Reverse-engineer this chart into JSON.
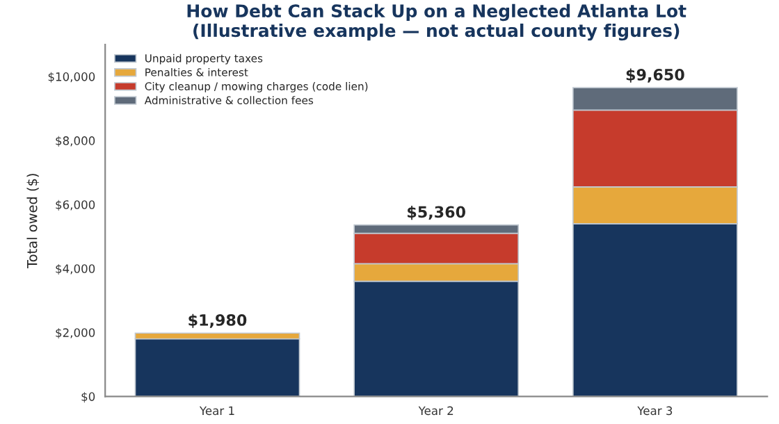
{
  "chart_data": {
    "type": "bar",
    "title": "How Debt Can Stack Up on a Neglected Atlanta Lot\n(Illustrative example — not actual county figures)",
    "ylabel": "Total owed ($)",
    "categories": [
      "Year 1",
      "Year 2",
      "Year 3"
    ],
    "stacked": true,
    "series": [
      {
        "name": "Unpaid property taxes",
        "color": "#17355d",
        "values": [
          1800,
          3600,
          5400
        ]
      },
      {
        "name": "Penalties & interest",
        "color": "#e6a83c",
        "values": [
          180,
          550,
          1150
        ]
      },
      {
        "name": "City cleanup / mowing charges (code lien)",
        "color": "#c63b2c",
        "values": [
          null,
          950,
          2400
        ]
      },
      {
        "name": "Administrative & collection fees",
        "color": "#5f6b7a",
        "values": [
          null,
          260,
          700
        ]
      }
    ],
    "totals": [
      "$1,980",
      "$5,360",
      "$9,650"
    ],
    "ylim": [
      0,
      11000
    ],
    "yticks": [
      {
        "value": 0,
        "label": "$0"
      },
      {
        "value": 2000,
        "label": "$2,000"
      },
      {
        "value": 4000,
        "label": "$4,000"
      },
      {
        "value": 6000,
        "label": "$6,000"
      },
      {
        "value": 8000,
        "label": "$8,000"
      },
      {
        "value": 10000,
        "label": "$10,000"
      }
    ],
    "grid": false,
    "legend": "top left"
  }
}
